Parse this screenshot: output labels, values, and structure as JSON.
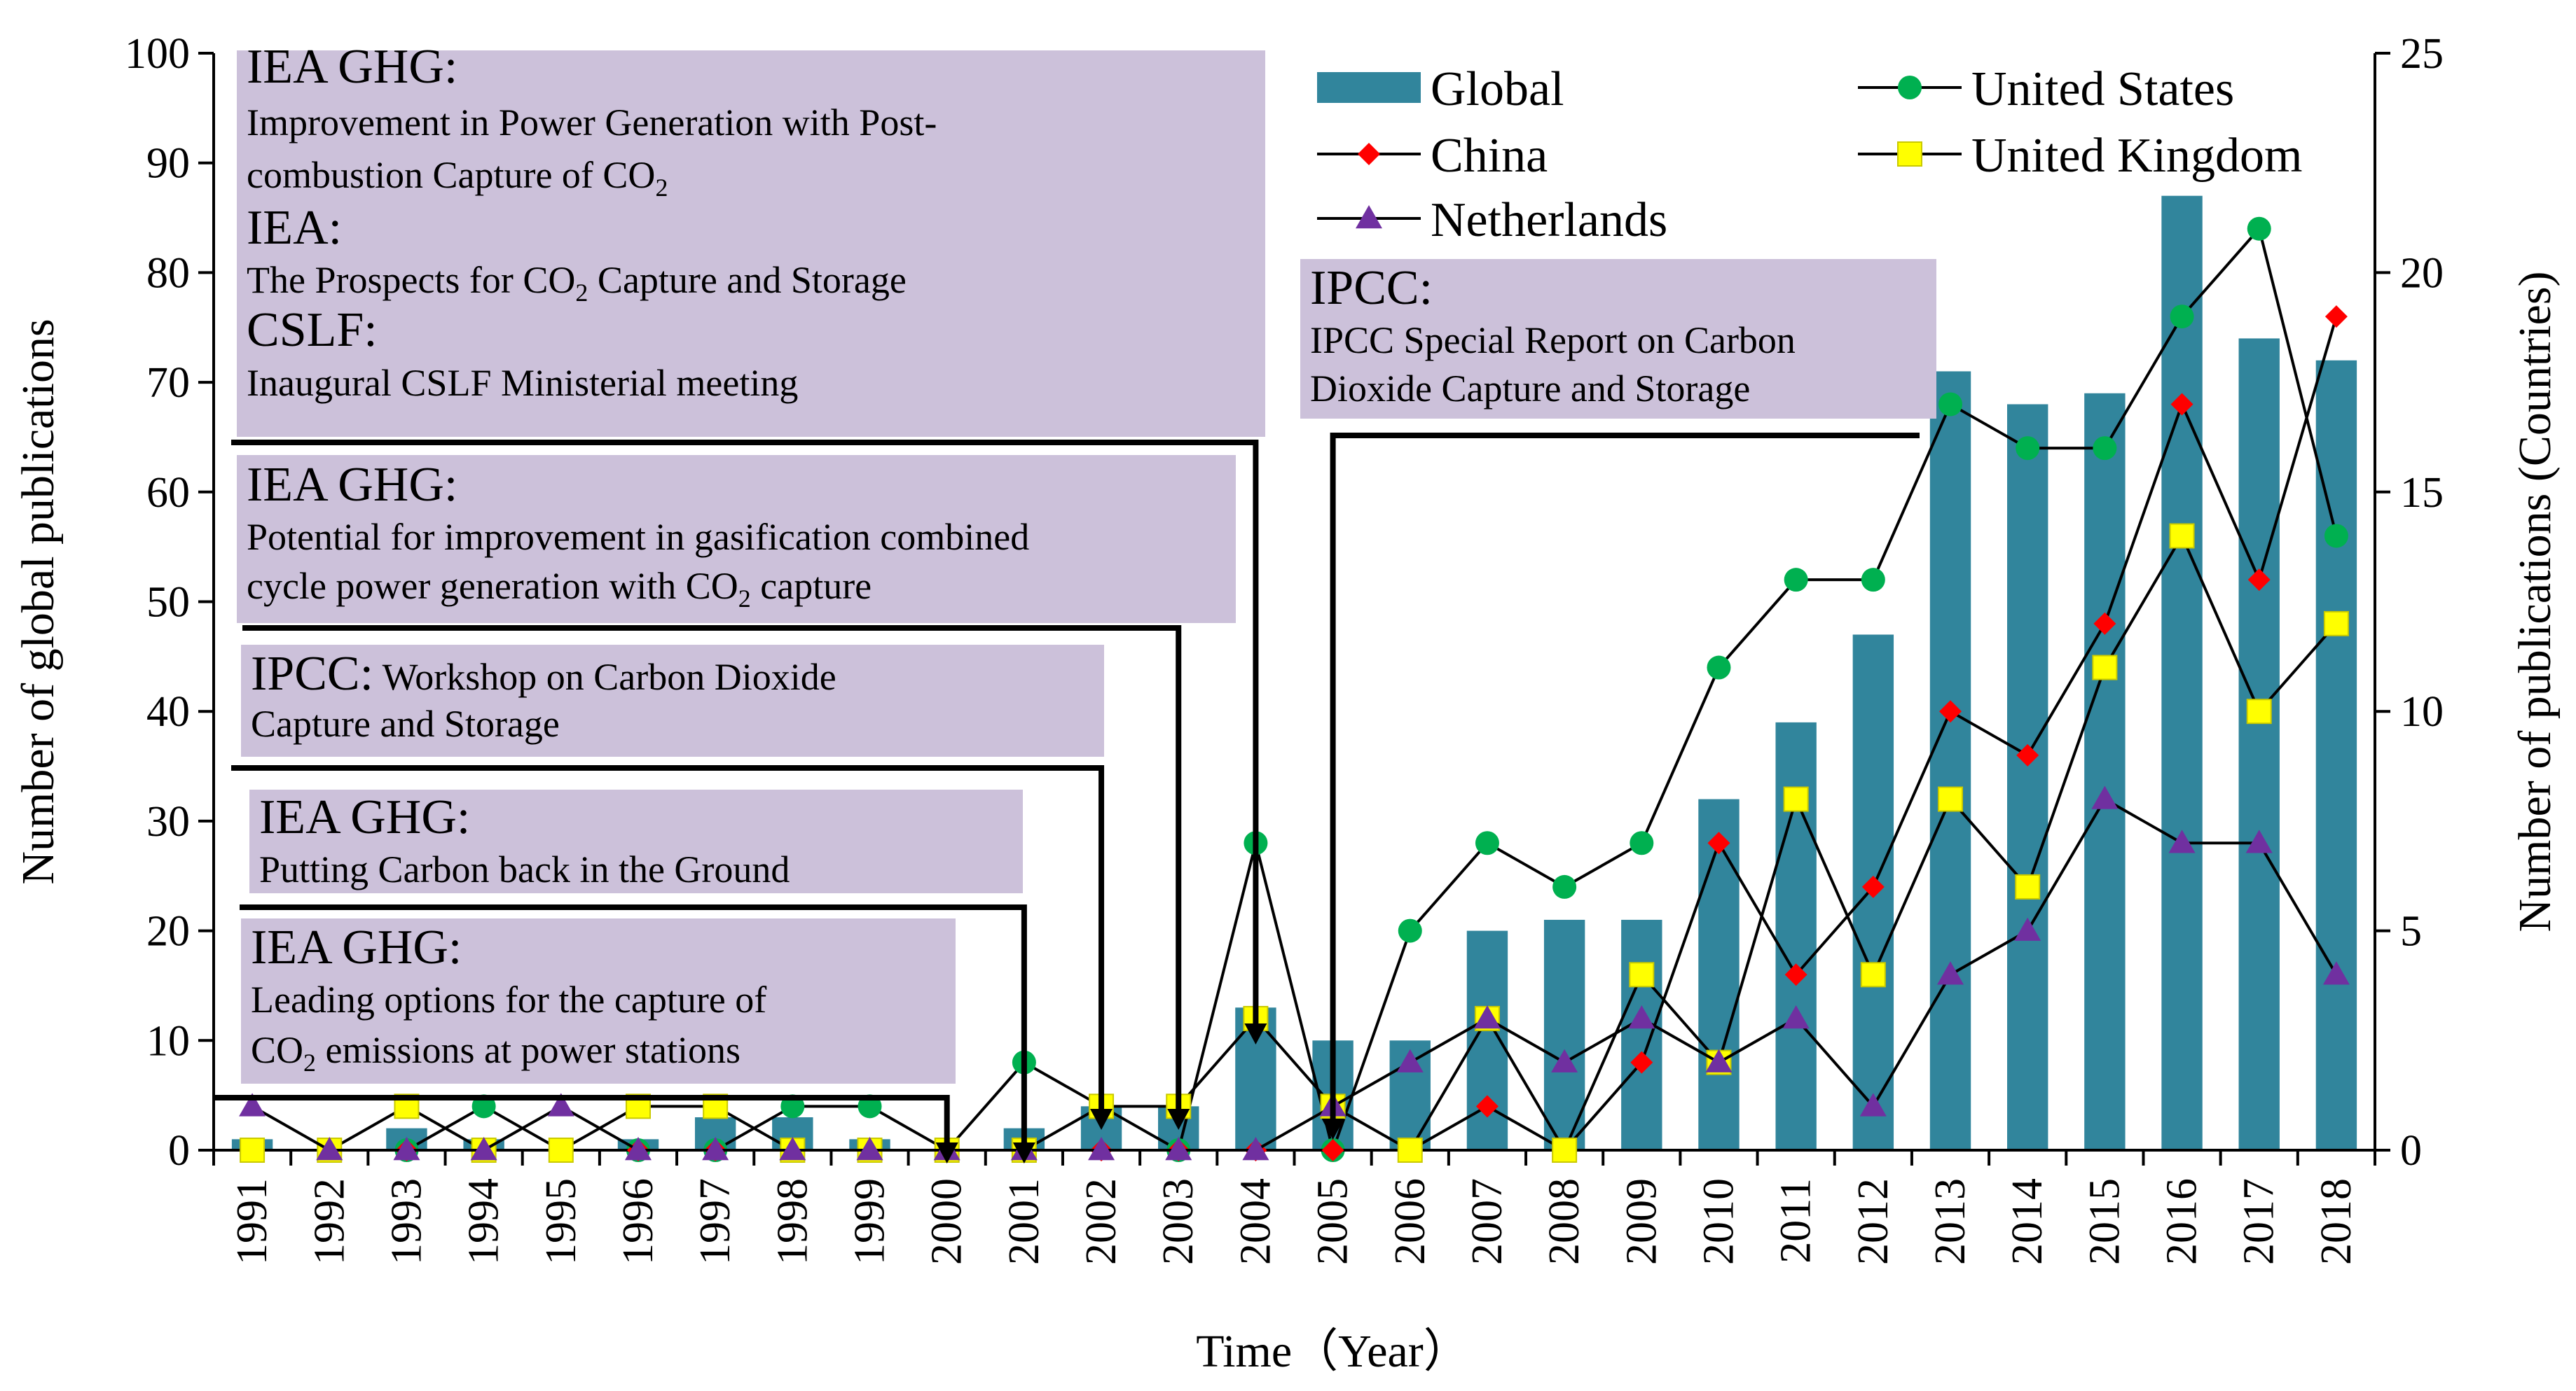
{
  "chart_data": {
    "type": "bar+line",
    "categories": [
      "1991",
      "1992",
      "1993",
      "1994",
      "1995",
      "1996",
      "1997",
      "1998",
      "1999",
      "2000",
      "2001",
      "2002",
      "2003",
      "2004",
      "2005",
      "2006",
      "2007",
      "2008",
      "2009",
      "2010",
      "2011",
      "2012",
      "2013",
      "2014",
      "2015",
      "2016",
      "2017",
      "2018"
    ],
    "xlabel": "Time（Year）",
    "ylabel": "Number of global publications",
    "y2label": "Number of publications (Countries)",
    "ylim": [
      0,
      100
    ],
    "yticks": [
      "0",
      "10",
      "20",
      "30",
      "40",
      "50",
      "60",
      "70",
      "80",
      "90",
      "100"
    ],
    "y2lim": [
      0,
      25
    ],
    "y2ticks": [
      "0",
      "5",
      "10",
      "15",
      "20",
      "25"
    ],
    "bars": {
      "name": "Global",
      "color": "#31859c",
      "values": [
        1,
        0,
        2,
        1,
        0,
        1,
        3,
        3,
        1,
        0,
        2,
        4,
        4,
        13,
        10,
        10,
        20,
        21,
        21,
        32,
        39,
        47,
        71,
        68,
        69,
        87,
        74,
        72
      ]
    },
    "series": [
      {
        "name": "United States",
        "color": "#00b050",
        "marker": "circle",
        "values": [
          0,
          0,
          0,
          1,
          0,
          0,
          0,
          1,
          1,
          0,
          2,
          1,
          0,
          7,
          0,
          5,
          7,
          6,
          7,
          11,
          13,
          13,
          17,
          16,
          16,
          19,
          21,
          14
        ]
      },
      {
        "name": "China",
        "color": "#ff0000",
        "marker": "diamond",
        "values": [
          0,
          0,
          0,
          0,
          0,
          0,
          0,
          0,
          0,
          0,
          0,
          0,
          0,
          0,
          0,
          0,
          1,
          0,
          2,
          7,
          4,
          6,
          10,
          9,
          12,
          17,
          13,
          19
        ]
      },
      {
        "name": "United Kingdom",
        "color": "#ffff00",
        "marker": "square",
        "values": [
          0,
          0,
          1,
          0,
          0,
          1,
          1,
          0,
          0,
          0,
          0,
          1,
          1,
          3,
          1,
          0,
          3,
          0,
          4,
          2,
          8,
          4,
          8,
          6,
          11,
          14,
          10,
          12
        ]
      },
      {
        "name": "Netherlands",
        "color": "#7030a0",
        "marker": "triangle",
        "values": [
          1,
          0,
          0,
          0,
          1,
          0,
          0,
          0,
          0,
          0,
          0,
          0,
          0,
          0,
          1,
          2,
          3,
          2,
          3,
          2,
          3,
          1,
          4,
          5,
          8,
          7,
          7,
          4
        ]
      }
    ],
    "legend": [
      "Global",
      "United States",
      "China",
      "United Kingdom",
      "Netherlands"
    ],
    "annotations": [
      {
        "id": "ann1",
        "target_year": "2004",
        "lines": [
          {
            "kind": "title",
            "text": "IEA GHG:"
          },
          {
            "kind": "line",
            "text": "Improvement in Power Generation with Post-"
          },
          {
            "kind": "line",
            "text": "combustion Capture of CO",
            "sub": "2"
          },
          {
            "kind": "title",
            "text": "IEA:"
          },
          {
            "kind": "line",
            "text": "The Prospects for CO",
            "sub": "2",
            "after": " Capture and Storage"
          },
          {
            "kind": "title",
            "text": "CSLF:"
          },
          {
            "kind": "line",
            "text": "Inaugural CSLF Ministerial meeting"
          }
        ]
      },
      {
        "id": "ann2",
        "target_year": "2003",
        "lines": [
          {
            "kind": "title",
            "text": "IEA GHG:"
          },
          {
            "kind": "line",
            "text": "Potential for improvement in gasification combined"
          },
          {
            "kind": "line",
            "text": "cycle power generation with CO",
            "sub": "2",
            "after": " capture"
          }
        ]
      },
      {
        "id": "ann3",
        "target_year": "2002",
        "lines": [
          {
            "kind": "mixed",
            "title": "IPCC:",
            "text": " Workshop on Carbon Dioxide"
          },
          {
            "kind": "line",
            "text": "Capture and Storage"
          }
        ]
      },
      {
        "id": "ann4",
        "target_year": "2001",
        "lines": [
          {
            "kind": "title",
            "text": "IEA GHG:"
          },
          {
            "kind": "line",
            "text": "Putting Carbon back in the Ground"
          }
        ]
      },
      {
        "id": "ann5",
        "target_year": "2000",
        "lines": [
          {
            "kind": "title",
            "text": "IEA GHG:"
          },
          {
            "kind": "line",
            "text": "Leading options for the capture of"
          },
          {
            "kind": "line",
            "text": "CO",
            "sub": "2",
            "after": " emissions at power stations"
          }
        ]
      },
      {
        "id": "ann6",
        "target_year": "2005",
        "lines": [
          {
            "kind": "title",
            "text": "IPCC:"
          },
          {
            "kind": "line",
            "text": "IPCC Special Report on Carbon"
          },
          {
            "kind": "line",
            "text": "Dioxide Capture and Storage"
          }
        ]
      }
    ]
  }
}
